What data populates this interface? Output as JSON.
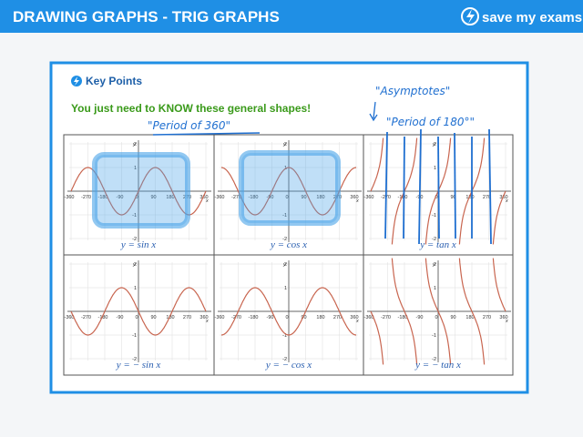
{
  "header": {
    "title": "DRAWING GRAPHS - TRIG GRAPHS",
    "logo": "save my exams"
  },
  "card": {
    "heading": "Key Points",
    "subheading": "You just need to KNOW these general shapes!"
  },
  "axes": {
    "x_ticks": [
      "-360",
      "-270",
      "-180",
      "-90",
      "0",
      "90",
      "180",
      "270",
      "360"
    ],
    "y_ticks": [
      "2",
      "1",
      "-1",
      "-2"
    ],
    "x_label": "x",
    "y_label": "y"
  },
  "graphs": [
    {
      "caption": "y = sin x"
    },
    {
      "caption": "y = cos x"
    },
    {
      "caption": "y = tan x"
    },
    {
      "caption": "y = − sin x"
    },
    {
      "caption": "y = − cos x"
    },
    {
      "caption": "y = − tan x"
    }
  ],
  "annotations": [
    "\"Period of 360\"",
    "\"Asymptotes\"",
    "\"Period of 180°\""
  ]
}
